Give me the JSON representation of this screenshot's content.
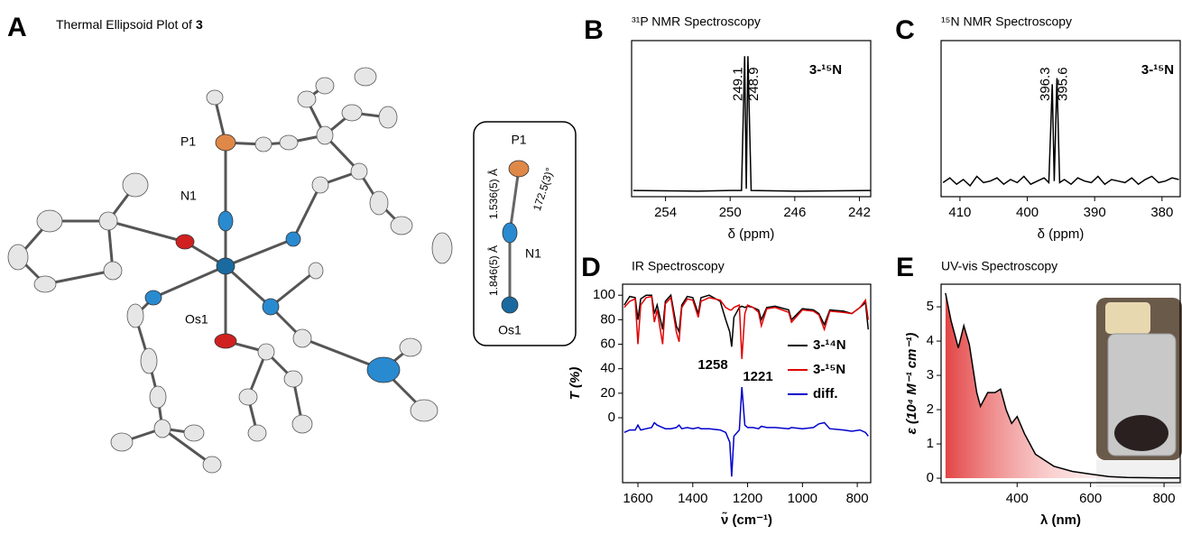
{
  "panel_a": {
    "letter": "A",
    "title": "Thermal Ellipsoid Plot of",
    "compound": "3",
    "atoms": [
      "P1",
      "N1",
      "Os1"
    ]
  },
  "inset": {
    "atoms": [
      "P1",
      "N1",
      "Os1"
    ],
    "bond_pn": "1.536(5) Å",
    "bond_nos": "1.846(5) Å",
    "angle": "172.5(3)°"
  },
  "chart_data": [
    {
      "type": "line",
      "letter": "B",
      "title": "³¹P NMR Spectroscopy",
      "xlabel": "δ (ppm)",
      "annotation": "3-¹⁵N",
      "xlim": [
        256.1,
        241.3
      ],
      "xticks": [
        254,
        250,
        246,
        242
      ],
      "ylim": [
        0,
        100
      ],
      "peaks": [
        249.1,
        248.9
      ],
      "x": [
        256,
        252,
        250,
        249.3,
        249.1,
        249.0,
        248.9,
        248.7,
        246,
        241.3
      ],
      "series": [
        {
          "color": "#000000",
          "values": [
            4,
            3.5,
            4,
            4,
            90,
            5,
            90,
            4,
            3.5,
            4
          ]
        }
      ]
    },
    {
      "type": "line",
      "letter": "C",
      "title": "¹⁵N NMR Spectroscopy",
      "xlabel": "δ (ppm)",
      "annotation": "3-¹⁵N",
      "xlim": [
        412.8,
        377.3
      ],
      "xticks": [
        410,
        400,
        390,
        380
      ],
      "ylim": [
        0,
        100
      ],
      "peaks": [
        396.3,
        395.6
      ],
      "x": [
        412.5,
        411.5,
        410.5,
        409.5,
        408.5,
        407.5,
        406.5,
        405.5,
        404.5,
        403.5,
        402.5,
        401.5,
        400.5,
        399.5,
        398.5,
        397.5,
        396.8,
        396.3,
        396.0,
        395.6,
        395.2,
        394.5,
        393.5,
        392.5,
        391.5,
        390.5,
        389.5,
        388.5,
        387.5,
        386.5,
        385.5,
        384.5,
        383.5,
        382.5,
        381.5,
        380.5,
        379.5,
        378.5,
        377.5
      ],
      "series": [
        {
          "color": "#000000",
          "values": [
            9,
            12,
            8,
            11,
            7,
            13,
            9,
            10,
            12,
            8,
            11,
            9,
            13,
            8,
            10,
            12,
            9,
            72,
            10,
            76,
            9,
            11,
            8,
            12,
            10,
            9,
            13,
            8,
            11,
            10,
            9,
            12,
            8,
            11,
            13,
            9,
            10,
            12,
            11
          ]
        }
      ]
    },
    {
      "type": "line",
      "letter": "D",
      "title": "IR Spectroscopy",
      "xlabel": "ν̃ (cm⁻¹)",
      "ylabel": "T (%)",
      "xlim": [
        1656,
        751
      ],
      "xticks": [
        1600,
        1400,
        1200,
        1000,
        800
      ],
      "ylim": [
        -53,
        109
      ],
      "yticks": [
        0,
        20,
        40,
        60,
        80,
        100
      ],
      "annotations": [
        {
          "text": "1258",
          "color": "#000000"
        },
        {
          "text": "1221",
          "color": "#e00000"
        }
      ],
      "x": [
        1650,
        1630,
        1610,
        1600,
        1590,
        1570,
        1550,
        1540,
        1530,
        1510,
        1500,
        1480,
        1460,
        1450,
        1440,
        1420,
        1400,
        1380,
        1370,
        1340,
        1300,
        1280,
        1265,
        1258,
        1250,
        1230,
        1221,
        1210,
        1200,
        1180,
        1160,
        1150,
        1130,
        1100,
        1050,
        1040,
        1000,
        960,
        940,
        920,
        900,
        850,
        820,
        790,
        770,
        760
      ],
      "series": [
        {
          "name": "3-¹⁴N",
          "color": "#000000",
          "values": [
            92,
            99,
            98,
            80,
            97,
            100,
            100,
            85,
            92,
            72,
            95,
            100,
            75,
            70,
            92,
            99,
            98,
            85,
            98,
            100,
            95,
            80,
            70,
            58,
            82,
            90,
            91,
            90,
            91,
            90,
            88,
            80,
            90,
            91,
            88,
            80,
            89,
            88,
            85,
            76,
            88,
            87,
            85,
            90,
            94,
            72
          ]
        },
        {
          "name": "3-¹⁵N",
          "color": "#e00000",
          "values": [
            90,
            95,
            97,
            60,
            92,
            98,
            99,
            78,
            88,
            60,
            93,
            98,
            70,
            62,
            90,
            97,
            96,
            82,
            95,
            98,
            96,
            90,
            88,
            88,
            90,
            92,
            48,
            85,
            92,
            90,
            86,
            75,
            89,
            90,
            86,
            78,
            88,
            87,
            84,
            72,
            87,
            86,
            85,
            90,
            96,
            80
          ]
        },
        {
          "name": "diff.",
          "color": "#0000cc",
          "values": [
            -12,
            -10,
            -10,
            -6,
            -10,
            -9,
            -8,
            -4,
            -6,
            -8,
            -9,
            -9,
            -8,
            -6,
            -9,
            -8,
            -9,
            -8,
            -9,
            -9,
            -10,
            -12,
            -20,
            -48,
            -15,
            -10,
            25,
            -6,
            -8,
            -8,
            -9,
            -7,
            -8,
            -8,
            -9,
            -8,
            -9,
            -8,
            -5,
            -4,
            -9,
            -10,
            -11,
            -10,
            -12,
            -15
          ]
        }
      ]
    },
    {
      "type": "area",
      "letter": "E",
      "title": "UV-vis Spectroscopy",
      "xlabel": "λ (nm)",
      "ylabel": "ε (10⁴ M⁻¹ cm⁻¹)",
      "xlim": [
        193,
        844
      ],
      "xticks": [
        400,
        600,
        800
      ],
      "ylim": [
        -0.13,
        5.66
      ],
      "yticks": [
        0,
        1,
        2,
        3,
        4,
        5
      ],
      "x": [
        205,
        220,
        240,
        255,
        270,
        290,
        300,
        320,
        340,
        355,
        370,
        385,
        400,
        420,
        450,
        500,
        550,
        600,
        650,
        700,
        800,
        844
      ],
      "series": [
        {
          "color": "#000000",
          "values": [
            5.4,
            4.6,
            3.8,
            4.45,
            3.9,
            2.5,
            2.1,
            2.5,
            2.5,
            2.6,
            2.0,
            1.6,
            1.8,
            1.3,
            0.7,
            0.35,
            0.2,
            0.12,
            0.05,
            0.02,
            0.01,
            0.01
          ]
        }
      ]
    }
  ]
}
